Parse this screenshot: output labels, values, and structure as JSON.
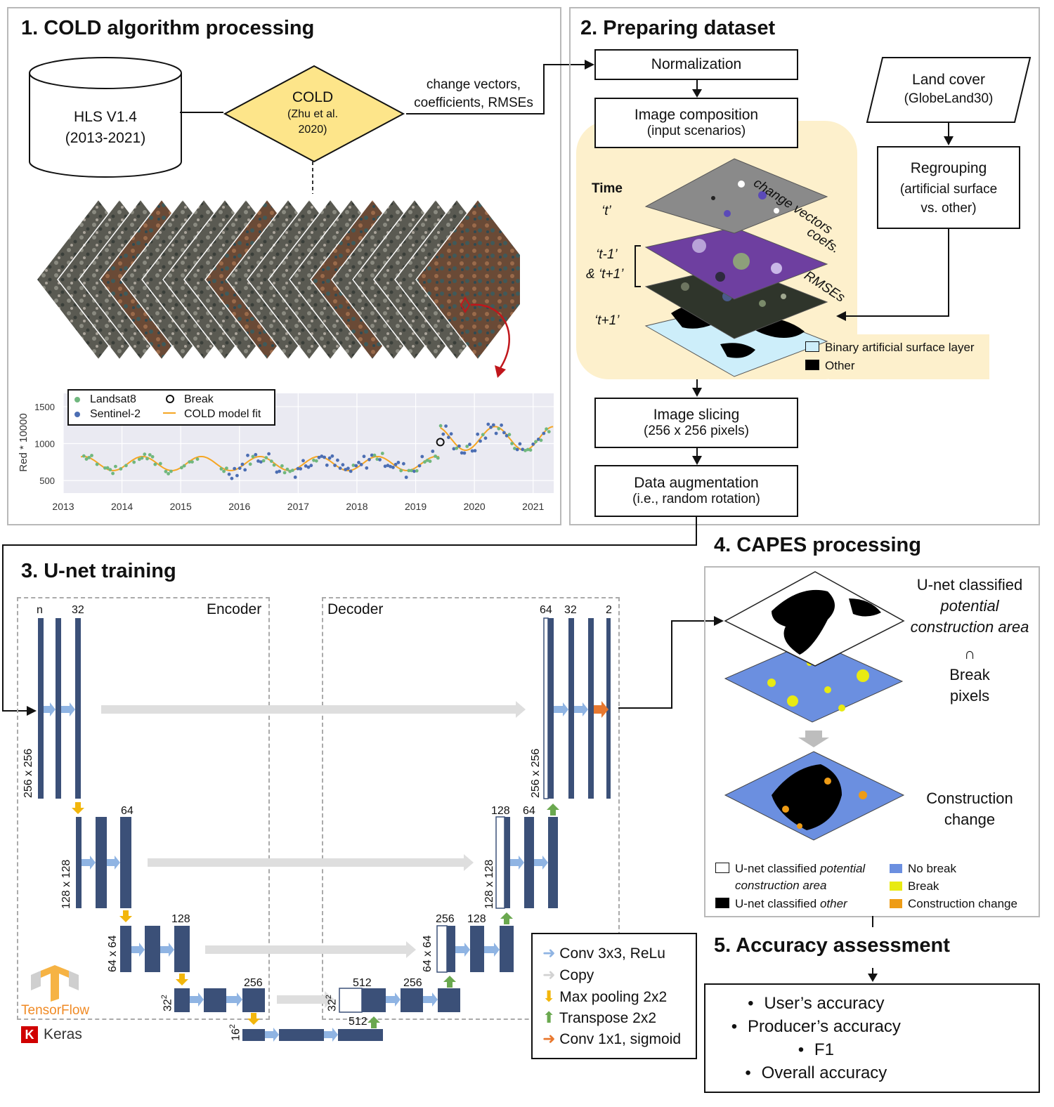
{
  "section1": {
    "title": "1. COLD algorithm processing",
    "hls_line1": "HLS V1.4",
    "hls_line2": "(2013-2021)",
    "cold_title": "COLD",
    "cold_ref_line1": "(Zhu et al.",
    "cold_ref_line2": "2020)",
    "output_line1": "change vectors,",
    "output_line2": "coefficients, RMSEs"
  },
  "section2": {
    "title": "2. Preparing dataset",
    "normalization": "Normalization",
    "composition_title": "Image composition",
    "composition_sub": "(input scenarios)",
    "time_label": "Time",
    "time_t": "‘t’",
    "time_tm1": "‘t-1’",
    "time_tp1_amp": "& ‘t+1’",
    "time_tp1": "‘t+1’",
    "layer_change_vectors": "change vectors",
    "layer_coefs": "coefs.",
    "layer_rmses": "RMSEs",
    "legend_binary": "Binary artificial surface layer",
    "legend_other": "Other",
    "landcover_title": "Land cover",
    "landcover_sub": "(GlobeLand30)",
    "regroup_title": "Regrouping",
    "regroup_sub1": "(artificial surface",
    "regroup_sub2": "vs. other)",
    "slicing_title": "Image slicing",
    "slicing_sub": "(256 x 256 pixels)",
    "augment_title": "Data augmentation",
    "augment_sub": "(i.e., random rotation)"
  },
  "section3": {
    "title": "3. U-net training",
    "encoder": "Encoder",
    "decoder": "Decoder",
    "lbl_n": "n",
    "lbl_32": "32",
    "lbl_64": "64",
    "lbl_128": "128",
    "lbl_256": "256",
    "lbl_512": "512",
    "lbl_2": "2",
    "dim_256": "256 x 256",
    "dim_128": "128 x 128",
    "dim_64": "64 x 64",
    "dim_32": "32",
    "dim_16": "16",
    "sup_2": "2",
    "legend_conv": "Conv 3x3, ReLu",
    "legend_copy": "Copy",
    "legend_maxpool": "Max pooling 2x2",
    "legend_transpose": "Transpose 2x2",
    "legend_conv1x1": "Conv 1x1, sigmoid",
    "tensorflow": "TensorFlow",
    "keras_k": "K",
    "keras": "Keras"
  },
  "section4": {
    "title": "4. CAPES processing",
    "unet_line1": "U-net classified",
    "unet_line2": "potential",
    "unet_line3": "construction area",
    "intersect": "∩",
    "break_line1": "Break",
    "break_line2": "pixels",
    "cc_line1": "Construction",
    "cc_line2": "change",
    "leg_potential_a": "U-net classified ",
    "leg_potential_b": "potential",
    "leg_potential_c": "construction area",
    "leg_other_a": "U-net classified ",
    "leg_other_b": "other",
    "leg_nobreak": "No break",
    "leg_break": "Break",
    "leg_cc": "Construction change"
  },
  "section5": {
    "title": "5. Accuracy assessment",
    "items": [
      "User’s accuracy",
      "Producer’s accuracy",
      "F1",
      "Overall accuracy"
    ]
  },
  "colors": {
    "diamond": "#fde58a",
    "highlight": "#fdf0cc",
    "layer_blue": "#cdeefa",
    "block": "#3b5078",
    "conv_arrow": "#8fb4e3",
    "copy_arrow": "#dedede",
    "maxpool_arrow": "#f2b60c",
    "transpose_arrow": "#6aa84f",
    "conv1x1_arrow": "#e8782f",
    "no_break": "#6b8fe0",
    "break": "#e8ea12",
    "construction_change": "#ee9c16",
    "landsat": "#70b77e",
    "sentinel": "#4c6eb3",
    "fit": "#f5a623"
  },
  "chart_data": {
    "type": "scatter",
    "ylabel": "Red * 10000",
    "x_ticks": [
      "2013",
      "2014",
      "2015",
      "2016",
      "2017",
      "2018",
      "2019",
      "2020",
      "2021"
    ],
    "y_ticks": [
      500,
      1000,
      1500
    ],
    "xlim": [
      2013,
      2021.35
    ],
    "ylim": [
      330,
      1680
    ],
    "legend": [
      {
        "name": "Landsat8",
        "marker": "dot",
        "color": "#70b77e"
      },
      {
        "name": "Sentinel-2",
        "marker": "dot",
        "color": "#4c6eb3"
      },
      {
        "name": "Break",
        "marker": "ring",
        "color": "#111111"
      },
      {
        "name": "COLD model fit",
        "marker": "line",
        "color": "#f5a623"
      }
    ],
    "break_point": {
      "x": 2019.42,
      "y": 1020
    },
    "fit_segment_1": {
      "x_range": [
        2013.3,
        2019.4
      ],
      "mean": 730,
      "amplitude": 95,
      "period": 1.0
    },
    "fit_segment_2": {
      "x_range": [
        2019.42,
        2021.35
      ],
      "mean": 1070,
      "amplitude": 160,
      "period": 1.0
    }
  }
}
